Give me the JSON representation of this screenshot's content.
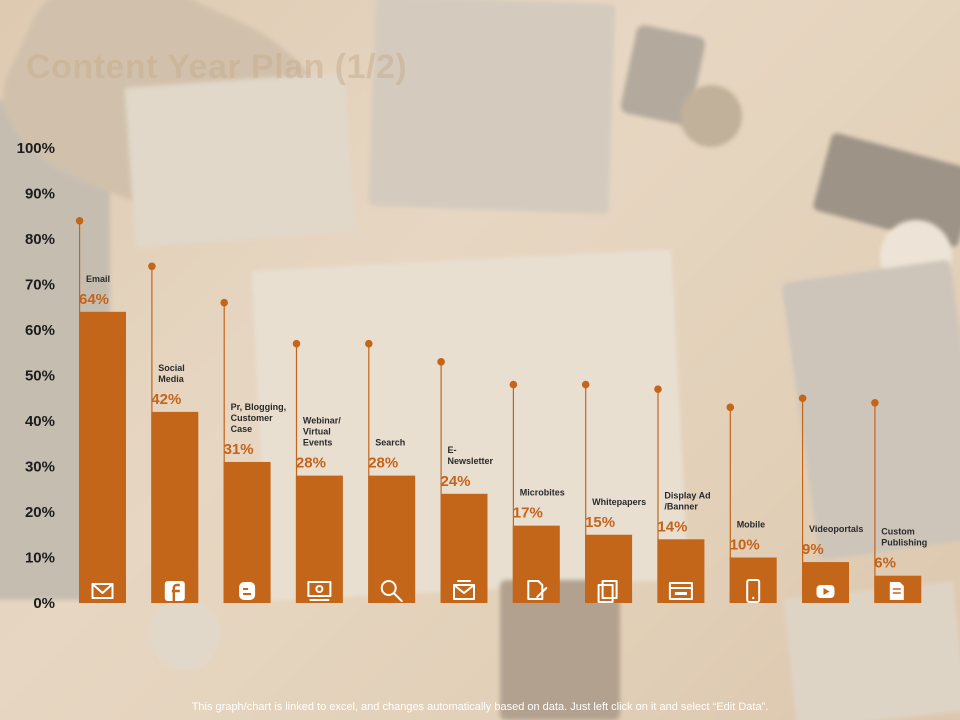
{
  "page": {
    "title": "Content Year Plan (1/2)",
    "footnote": "This graph/chart is linked to excel, and changes automatically based on data. Just left click on it and select “Edit Data”."
  },
  "colors": {
    "bar": "#c4661a",
    "value_label": "#c4631a"
  },
  "chart_data": {
    "type": "bar",
    "title": "",
    "xlabel": "",
    "ylabel": "",
    "ylim": [
      0,
      100
    ],
    "yticks": [
      "0%",
      "10%",
      "20%",
      "30%",
      "40%",
      "50%",
      "60%",
      "70%",
      "80%",
      "90%",
      "100%"
    ],
    "grid": false,
    "value_suffix": "%",
    "categories": [
      "Email",
      "Social Media",
      "Pr, Blogging, Customer Case",
      "Webinar/ Virtual Events",
      "Search",
      "E- Newsletter",
      "Microbites",
      "Whitepapers",
      "Display Ad /Banner",
      "Mobile",
      "Videoportals",
      "Custom Publishing"
    ],
    "category_label_lines": [
      [
        "Email"
      ],
      [
        "Social",
        "Media"
      ],
      [
        "Pr, Blogging,",
        "Customer",
        "Case"
      ],
      [
        "Webinar/",
        "Virtual",
        "Events"
      ],
      [
        "Search"
      ],
      [
        "E-",
        "Newsletter"
      ],
      [
        "Microbites"
      ],
      [
        "Whitepapers"
      ],
      [
        "Display Ad",
        "/Banner"
      ],
      [
        "Mobile"
      ],
      [
        "Videoportals"
      ],
      [
        "Custom",
        "Publishing"
      ]
    ],
    "values": [
      64,
      42,
      31,
      28,
      28,
      24,
      17,
      15,
      14,
      10,
      9,
      6
    ],
    "marker_levels": [
      84,
      74,
      66,
      57,
      57,
      53,
      48,
      48,
      47,
      43,
      45,
      44
    ],
    "icons": [
      "mail-icon",
      "facebook-icon",
      "blogger-icon",
      "webinar-icon",
      "search-icon",
      "newsletter-icon",
      "edit-document-icon",
      "documents-icon",
      "banner-icon",
      "mobile-icon",
      "video-icon",
      "publishing-icon"
    ]
  }
}
